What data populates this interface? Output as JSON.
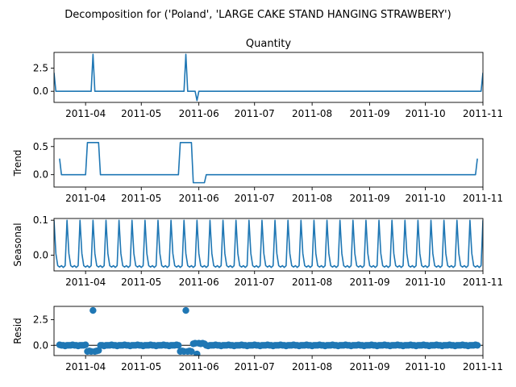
{
  "figure": {
    "suptitle": "Decomposition for ('Poland', 'LARGE CAKE STAND  HANGING STRAWBERY')"
  },
  "chart_data": [
    {
      "type": "line",
      "title": "Quantity",
      "ylabel": "",
      "xlim": [
        "2011-03-15",
        "2011-11-01"
      ],
      "ylim": [
        -1.2,
        4.2
      ],
      "yticks": [
        0.0,
        2.5
      ],
      "ytick_labels": [
        "0.0",
        "2.5"
      ],
      "xticks": [
        "2011-04-01",
        "2011-05-01",
        "2011-06-01",
        "2011-07-01",
        "2011-08-01",
        "2011-09-01",
        "2011-10-01",
        "2011-11-01"
      ],
      "xtick_labels": [
        "2011-04",
        "2011-05",
        "2011-06",
        "2011-07",
        "2011-08",
        "2011-09",
        "2011-10",
        "2011-11"
      ],
      "series": [
        {
          "x": [
            "2011-03-15",
            "2011-03-16",
            "2011-03-17",
            "2011-03-18",
            "2011-04-04",
            "2011-04-05",
            "2011-04-06",
            "2011-04-07",
            "2011-05-24",
            "2011-05-25",
            "2011-05-26",
            "2011-05-30",
            "2011-05-31",
            "2011-06-01",
            "2011-06-02",
            "2011-06-03",
            "2011-10-31",
            "2011-11-01"
          ],
          "y": [
            2.0,
            0,
            0,
            0,
            0,
            4,
            0,
            0,
            0,
            4,
            0,
            0,
            -1,
            0,
            0,
            0,
            0,
            2.0
          ]
        }
      ]
    },
    {
      "type": "line",
      "title": "",
      "ylabel": "Trend",
      "xlim": [
        "2011-03-15",
        "2011-11-01"
      ],
      "ylim": [
        -0.22,
        0.64
      ],
      "yticks": [
        0.0,
        0.5
      ],
      "ytick_labels": [
        "0.0",
        "0.5"
      ],
      "xticks": [
        "2011-04-01",
        "2011-05-01",
        "2011-06-01",
        "2011-07-01",
        "2011-08-01",
        "2011-09-01",
        "2011-10-01",
        "2011-11-01"
      ],
      "xtick_labels": [
        "2011-04",
        "2011-05",
        "2011-06",
        "2011-07",
        "2011-08",
        "2011-09",
        "2011-10",
        "2011-11"
      ],
      "series": [
        {
          "x": [
            "2011-03-18",
            "2011-03-19",
            "2011-04-01",
            "2011-04-02",
            "2011-04-08",
            "2011-04-09",
            "2011-05-21",
            "2011-05-22",
            "2011-05-28",
            "2011-05-29",
            "2011-06-04",
            "2011-06-05",
            "2011-10-28",
            "2011-10-29"
          ],
          "y": [
            0.286,
            0,
            0,
            0.571,
            0.571,
            0,
            0,
            0.571,
            0.571,
            -0.143,
            -0.143,
            0,
            0,
            0.286
          ]
        }
      ]
    },
    {
      "type": "line",
      "title": "",
      "ylabel": "Seasonal",
      "xlim": [
        "2011-03-15",
        "2011-11-01"
      ],
      "ylim": [
        -0.045,
        0.105
      ],
      "yticks": [
        0.0,
        0.1
      ],
      "ytick_labels": [
        "0.0",
        "0.1"
      ],
      "xticks": [
        "2011-04-01",
        "2011-05-01",
        "2011-06-01",
        "2011-07-01",
        "2011-08-01",
        "2011-09-01",
        "2011-10-01",
        "2011-11-01"
      ],
      "xtick_labels": [
        "2011-04",
        "2011-05",
        "2011-06",
        "2011-07",
        "2011-08",
        "2011-09",
        "2011-10",
        "2011-11"
      ],
      "weekly_pattern": {
        "start": "2011-03-15",
        "end": "2011-11-01",
        "period_days": 7,
        "values": [
          0.1,
          0.005,
          -0.03,
          -0.034,
          -0.03,
          -0.035,
          -0.03
        ]
      }
    },
    {
      "type": "scatter",
      "title": "",
      "ylabel": "Resid",
      "xlim": [
        "2011-03-15",
        "2011-11-01"
      ],
      "ylim": [
        -1.0,
        3.8
      ],
      "yticks": [
        0.0,
        2.5
      ],
      "ytick_labels": [
        "0.0",
        "2.5"
      ],
      "xticks": [
        "2011-04-01",
        "2011-05-01",
        "2011-06-01",
        "2011-07-01",
        "2011-08-01",
        "2011-09-01",
        "2011-10-01",
        "2011-11-01"
      ],
      "xtick_labels": [
        "2011-04",
        "2011-05",
        "2011-06",
        "2011-07",
        "2011-08",
        "2011-09",
        "2011-10",
        "2011-11"
      ],
      "zero_line": true,
      "points_range": [
        "2011-03-18",
        "2011-10-29"
      ],
      "points": [
        {
          "x": "2011-04-02",
          "y": -0.6
        },
        {
          "x": "2011-04-03",
          "y": -0.55
        },
        {
          "x": "2011-04-04",
          "y": -0.6
        },
        {
          "x": "2011-04-05",
          "y": 3.4
        },
        {
          "x": "2011-04-06",
          "y": -0.6
        },
        {
          "x": "2011-04-07",
          "y": -0.55
        },
        {
          "x": "2011-04-08",
          "y": -0.5
        },
        {
          "x": "2011-05-22",
          "y": -0.6
        },
        {
          "x": "2011-05-23",
          "y": -0.55
        },
        {
          "x": "2011-05-24",
          "y": -0.6
        },
        {
          "x": "2011-05-25",
          "y": 3.4
        },
        {
          "x": "2011-05-26",
          "y": -0.6
        },
        {
          "x": "2011-05-27",
          "y": -0.55
        },
        {
          "x": "2011-05-28",
          "y": -0.6
        },
        {
          "x": "2011-05-29",
          "y": 0.15
        },
        {
          "x": "2011-05-30",
          "y": 0.2
        },
        {
          "x": "2011-05-31",
          "y": -0.85
        },
        {
          "x": "2011-06-01",
          "y": 0.2
        },
        {
          "x": "2011-06-02",
          "y": 0.15
        },
        {
          "x": "2011-06-03",
          "y": 0.2
        },
        {
          "x": "2011-06-04",
          "y": 0.15
        }
      ]
    }
  ]
}
